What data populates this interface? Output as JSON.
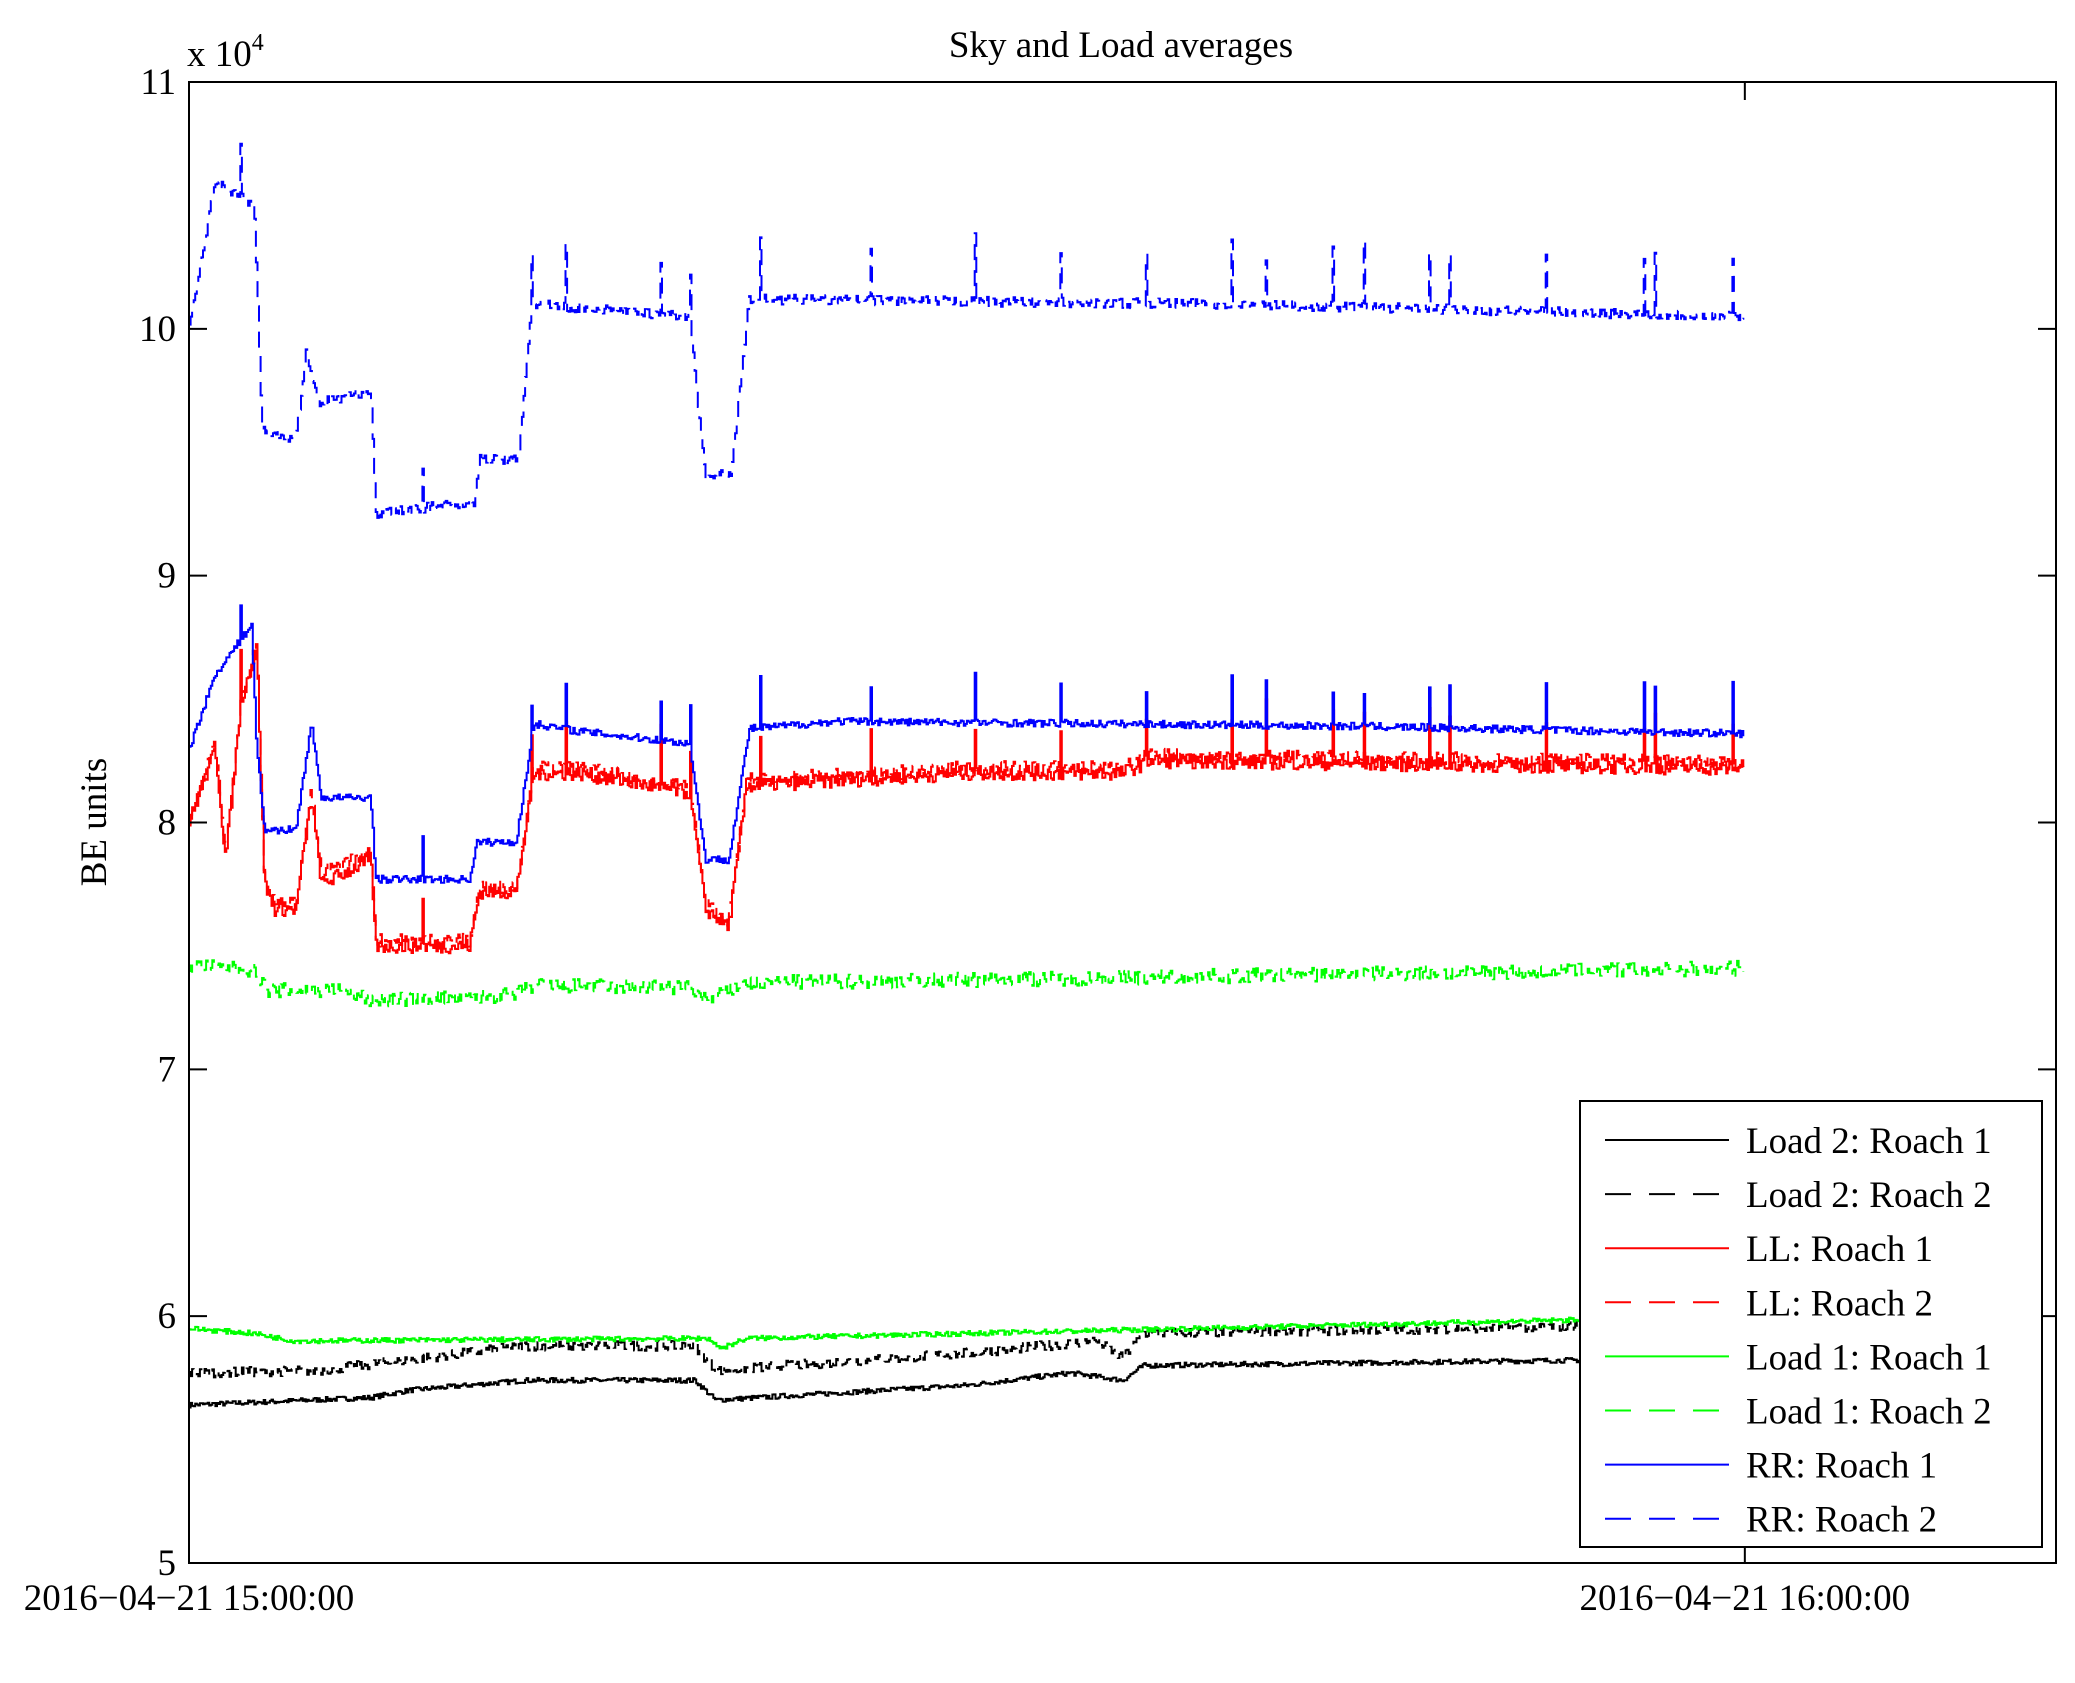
{
  "chart_data": {
    "type": "line",
    "title": "Sky and Load averages",
    "xlabel": "",
    "ylabel": "BE units",
    "y_multiplier": "x 10",
    "y_multiplier_exp": "4",
    "x_unit": "minutes after 2016-04-21 15:00:00",
    "xlim": [
      0,
      72
    ],
    "ylim": [
      5,
      11
    ],
    "yticks": [
      "5",
      "6",
      "7",
      "8",
      "9",
      "10",
      "11"
    ],
    "xticks": [
      {
        "value": 0,
        "label": "2016−04−21 15:00:00"
      },
      {
        "value": 60,
        "label": "2016−04−21 16:00:00"
      }
    ],
    "grid": false,
    "legend_position": "bottom-right",
    "spike_times": [
      2,
      9,
      13.2,
      14.5,
      18.2,
      19.3,
      22,
      26.3,
      30.3,
      33.6,
      36.9,
      40.2,
      41.5,
      44.1,
      45.3,
      47.8,
      48.6,
      52.3,
      56.1,
      56.5,
      59.5
    ],
    "series": [
      {
        "name": "Load 2: Roach 1",
        "color": "#000000",
        "dash": false,
        "noise": 0.01,
        "points": [
          [
            0,
            5.64
          ],
          [
            7,
            5.67
          ],
          [
            8.5,
            5.7
          ],
          [
            13,
            5.74
          ],
          [
            19.5,
            5.74
          ],
          [
            20.3,
            5.66
          ],
          [
            30,
            5.72
          ],
          [
            34,
            5.77
          ],
          [
            36,
            5.74
          ],
          [
            36.8,
            5.8
          ],
          [
            60,
            5.83
          ]
        ]
      },
      {
        "name": "Load 2: Roach 2",
        "color": "#000000",
        "dash": true,
        "noise": 0.02,
        "points": [
          [
            0,
            5.77
          ],
          [
            5,
            5.78
          ],
          [
            13,
            5.88
          ],
          [
            19.5,
            5.88
          ],
          [
            20.3,
            5.78
          ],
          [
            30,
            5.85
          ],
          [
            35,
            5.9
          ],
          [
            36,
            5.83
          ],
          [
            36.8,
            5.93
          ],
          [
            60,
            5.97
          ]
        ]
      },
      {
        "name": "LL: Roach 1",
        "color": "#ff0000",
        "dash": false,
        "noise": 0.03,
        "spike": 0.25,
        "points": [
          [
            0,
            8.0
          ],
          [
            1,
            8.3
          ],
          [
            1.4,
            7.85
          ],
          [
            2,
            8.5
          ],
          [
            2.6,
            8.7
          ],
          [
            2.9,
            7.75
          ],
          [
            3.3,
            7.65
          ],
          [
            4.1,
            7.65
          ],
          [
            4.7,
            8.1
          ],
          [
            5.1,
            7.75
          ],
          [
            7,
            7.85
          ],
          [
            7.2,
            7.5
          ],
          [
            10.8,
            7.5
          ],
          [
            11.2,
            7.72
          ],
          [
            12.6,
            7.72
          ],
          [
            13.3,
            8.2
          ],
          [
            15,
            8.2
          ],
          [
            19.3,
            8.12
          ],
          [
            19.9,
            7.65
          ],
          [
            20.8,
            7.58
          ],
          [
            21.5,
            8.15
          ],
          [
            30,
            8.2
          ],
          [
            36,
            8.2
          ],
          [
            37,
            8.25
          ],
          [
            60,
            8.22
          ]
        ]
      },
      {
        "name": "LL: Roach 2",
        "color": "#ff0000",
        "dash": true,
        "noise": 0.03,
        "points": [
          [
            0,
            8.02
          ],
          [
            1,
            8.32
          ],
          [
            1.4,
            7.87
          ],
          [
            2,
            8.52
          ],
          [
            2.6,
            8.72
          ],
          [
            2.9,
            7.77
          ],
          [
            3.3,
            7.67
          ],
          [
            4.1,
            7.67
          ],
          [
            4.7,
            8.12
          ],
          [
            5.1,
            7.8
          ],
          [
            7,
            7.88
          ],
          [
            7.2,
            7.52
          ],
          [
            10.8,
            7.52
          ],
          [
            11.2,
            7.74
          ],
          [
            12.6,
            7.74
          ],
          [
            13.3,
            8.22
          ],
          [
            15,
            8.22
          ],
          [
            19.3,
            8.14
          ],
          [
            19.9,
            7.67
          ],
          [
            20.8,
            7.6
          ],
          [
            21.5,
            8.17
          ],
          [
            30,
            8.22
          ],
          [
            36,
            8.22
          ],
          [
            37,
            8.27
          ],
          [
            60,
            8.24
          ]
        ]
      },
      {
        "name": "Load 1: Roach 1",
        "color": "#00ff00",
        "dash": false,
        "noise": 0.01,
        "points": [
          [
            0,
            5.95
          ],
          [
            2.5,
            5.93
          ],
          [
            4,
            5.9
          ],
          [
            20,
            5.91
          ],
          [
            20.5,
            5.87
          ],
          [
            21.5,
            5.91
          ],
          [
            60,
            6.0
          ]
        ]
      },
      {
        "name": "Load 1: Roach 2",
        "color": "#00ff00",
        "dash": true,
        "noise": 0.03,
        "points": [
          [
            0,
            7.42
          ],
          [
            2.5,
            7.4
          ],
          [
            3,
            7.32
          ],
          [
            6,
            7.32
          ],
          [
            7,
            7.28
          ],
          [
            12.5,
            7.3
          ],
          [
            13.3,
            7.34
          ],
          [
            19.3,
            7.33
          ],
          [
            20,
            7.28
          ],
          [
            21.5,
            7.35
          ],
          [
            35,
            7.37
          ],
          [
            60,
            7.41
          ]
        ]
      },
      {
        "name": "RR: Roach 1",
        "color": "#0000ff",
        "dash": false,
        "noise": 0.015,
        "spike": 0.22,
        "points": [
          [
            0,
            8.3
          ],
          [
            1,
            8.6
          ],
          [
            2.4,
            8.8
          ],
          [
            2.6,
            8.3
          ],
          [
            2.9,
            7.97
          ],
          [
            4.1,
            7.97
          ],
          [
            4.7,
            8.4
          ],
          [
            5.1,
            8.1
          ],
          [
            7,
            8.1
          ],
          [
            7.2,
            7.77
          ],
          [
            10.8,
            7.77
          ],
          [
            11.1,
            7.92
          ],
          [
            12.6,
            7.92
          ],
          [
            13.3,
            8.4
          ],
          [
            15,
            8.37
          ],
          [
            19.3,
            8.32
          ],
          [
            19.9,
            7.85
          ],
          [
            20.8,
            7.85
          ],
          [
            21.6,
            8.38
          ],
          [
            25,
            8.41
          ],
          [
            35,
            8.4
          ],
          [
            45,
            8.39
          ],
          [
            60,
            8.36
          ]
        ]
      },
      {
        "name": "RR: Roach 2",
        "color": "#0000ff",
        "dash": true,
        "noise": 0.02,
        "spike": 0.28,
        "points": [
          [
            0,
            10.0
          ],
          [
            1,
            10.6
          ],
          [
            2.5,
            10.5
          ],
          [
            2.8,
            9.6
          ],
          [
            4.1,
            9.55
          ],
          [
            4.5,
            9.9
          ],
          [
            5,
            9.7
          ],
          [
            7,
            9.75
          ],
          [
            7.2,
            9.25
          ],
          [
            11,
            9.3
          ],
          [
            11.2,
            9.47
          ],
          [
            12.7,
            9.47
          ],
          [
            13.2,
            10.1
          ],
          [
            19.3,
            10.05
          ],
          [
            19.9,
            9.4
          ],
          [
            20.9,
            9.42
          ],
          [
            21.6,
            10.12
          ],
          [
            40,
            10.1
          ],
          [
            60,
            10.05
          ]
        ]
      }
    ]
  }
}
